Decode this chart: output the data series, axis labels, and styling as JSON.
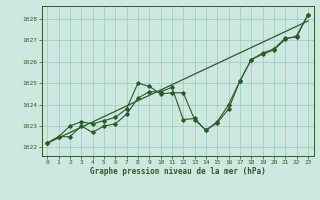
{
  "title": "Graphe pression niveau de la mer (hPa)",
  "background_color": "#cce8e0",
  "grid_color": "#99ccbb",
  "line_color": "#2d5a27",
  "xlim": [
    -0.5,
    23.5
  ],
  "ylim": [
    1021.6,
    1028.6
  ],
  "yticks": [
    1022,
    1023,
    1024,
    1025,
    1026,
    1027,
    1028
  ],
  "xticks": [
    0,
    1,
    2,
    3,
    4,
    5,
    6,
    7,
    8,
    9,
    10,
    11,
    12,
    13,
    14,
    15,
    16,
    17,
    18,
    19,
    20,
    21,
    22,
    23
  ],
  "series1_x": [
    0,
    1,
    2,
    3,
    4,
    5,
    6,
    7,
    8,
    9,
    10,
    11,
    12,
    13,
    14,
    15,
    16,
    17,
    18,
    19,
    20,
    21,
    22,
    23
  ],
  "series1_y": [
    1022.2,
    1022.5,
    1023.0,
    1023.2,
    1023.1,
    1023.25,
    1023.4,
    1023.8,
    1025.0,
    1024.85,
    1024.5,
    1024.55,
    1024.55,
    1023.3,
    1022.8,
    1023.2,
    1024.0,
    1025.1,
    1026.1,
    1026.4,
    1026.6,
    1027.1,
    1027.15,
    1028.2
  ],
  "series2_x": [
    0,
    1,
    2,
    3,
    4,
    5,
    6,
    7,
    8,
    9,
    10,
    11,
    12,
    13,
    14,
    15,
    16,
    17,
    18,
    19,
    20,
    21,
    22,
    23
  ],
  "series2_y": [
    1022.2,
    1022.5,
    1022.5,
    1023.0,
    1022.7,
    1023.0,
    1023.1,
    1023.55,
    1024.3,
    1024.6,
    1024.6,
    1024.8,
    1023.3,
    1023.35,
    1022.8,
    1023.15,
    1023.8,
    1025.1,
    1026.1,
    1026.35,
    1026.55,
    1027.05,
    1027.2,
    1028.2
  ],
  "trend_x": [
    0,
    23
  ],
  "trend_y": [
    1022.2,
    1027.9
  ]
}
